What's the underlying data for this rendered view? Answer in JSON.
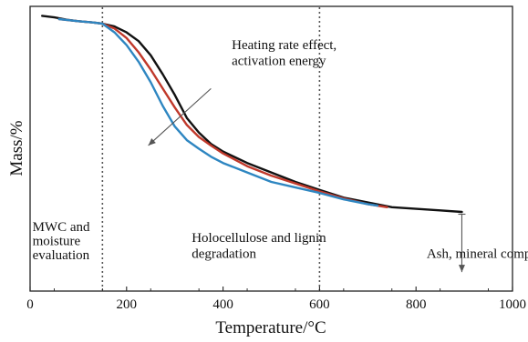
{
  "chart_data": {
    "type": "line",
    "title": "",
    "xlabel": "Temperature/°C",
    "ylabel": "Mass/%",
    "xlim": [
      0,
      1000
    ],
    "x_ticks": [
      0,
      200,
      400,
      600,
      800,
      1000
    ],
    "x_tick_labels": [
      "0",
      "200",
      "400",
      "600",
      "800",
      "1000"
    ],
    "y_axis_numeric_labels": false,
    "grid": false,
    "legend": "none",
    "reference_lines_x": [
      150,
      600
    ],
    "series": [
      {
        "color": "#111111",
        "x": [
          25,
          50,
          80,
          100,
          130,
          150,
          175,
          200,
          225,
          250,
          275,
          300,
          325,
          350,
          375,
          400,
          450,
          500,
          550,
          600,
          650,
          700,
          750,
          800,
          850,
          895
        ],
        "y": [
          100,
          99.2,
          97.8,
          97.2,
          96.5,
          95.9,
          94.4,
          91.3,
          86.7,
          79.2,
          69.2,
          58.3,
          46.2,
          38.5,
          32.5,
          28.5,
          22.5,
          17.5,
          12.5,
          8.3,
          4.2,
          1.7,
          -0.8,
          -1.7,
          -2.5,
          -3.3
        ]
      },
      {
        "color": "#c0392b",
        "x": [
          60,
          100,
          130,
          150,
          175,
          200,
          225,
          250,
          275,
          300,
          325,
          350,
          375,
          400,
          450,
          500,
          550,
          600,
          650,
          700,
          740
        ],
        "y": [
          98.3,
          97.2,
          96.5,
          95.9,
          93.3,
          88.3,
          80.8,
          71.7,
          61.7,
          51.7,
          42.5,
          36.2,
          31.7,
          27.5,
          20.8,
          15.8,
          11.7,
          7.5,
          3.8,
          0.8,
          -0.8
        ]
      },
      {
        "color": "#2e86c1",
        "x": [
          60,
          100,
          130,
          150,
          175,
          200,
          225,
          250,
          275,
          300,
          325,
          350,
          375,
          400,
          450,
          500,
          550,
          600,
          650,
          700,
          720
        ],
        "y": [
          98.3,
          97.2,
          96.5,
          95.9,
          91.3,
          84.6,
          75.8,
          65.0,
          52.5,
          41.7,
          34.5,
          30.0,
          25.8,
          22.5,
          17.5,
          12.5,
          9.6,
          6.7,
          3.3,
          0.8,
          0
        ]
      }
    ],
    "annotations": [
      {
        "text": "Heating rate effect,",
        "x": 418,
        "y": 82.5
      },
      {
        "text": "activation energy",
        "x": 418,
        "y": 74.2
      },
      {
        "text": "MWC and",
        "x": 5,
        "y": -13.3
      },
      {
        "text": "moisture",
        "x": 5,
        "y": -20.8
      },
      {
        "text": "evaluation",
        "x": 5,
        "y": -28.3
      },
      {
        "text": "Holocellulose and lignin",
        "x": 335,
        "y": -19.2
      },
      {
        "text": "degradation",
        "x": 335,
        "y": -27.5
      },
      {
        "text": "Ash, mineral components",
        "x": 822,
        "y": -27.5
      }
    ],
    "arrows": [
      {
        "from_x": 375,
        "from_y": 61.7,
        "to_x": 245,
        "to_y": 31.7
      },
      {
        "from_x": 895,
        "from_y": -4.5,
        "to_x": 895,
        "to_y": -35.0
      }
    ],
    "y_extent": [
      -45,
      105
    ]
  }
}
